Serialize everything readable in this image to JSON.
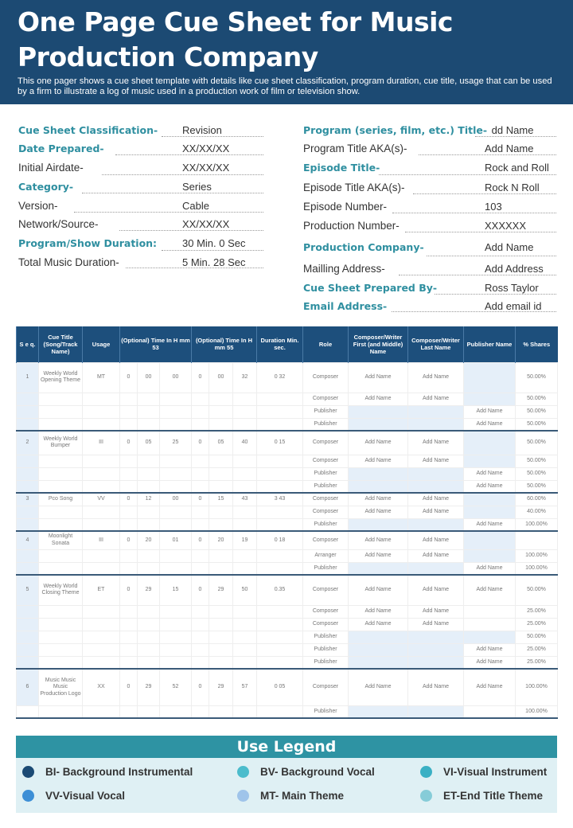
{
  "header": {
    "title": "One Page Cue Sheet for Music Production Company",
    "subtitle": "This one pager shows a cue sheet template with details like cue sheet classification, program duration, cue title, usage that can be used by a firm to illustrate a log of music used in a production work of film or television show."
  },
  "form_left": [
    {
      "label": "Cue Sheet Classification-",
      "value": "Revision",
      "highlight": true
    },
    {
      "label": "Date Prepared-",
      "value": "XX/XX/XX",
      "highlight": true
    },
    {
      "label": "Initial Airdate-",
      "value": "XX/XX/XX",
      "highlight": false
    },
    {
      "label": "Category-",
      "value": "Series",
      "highlight": true
    },
    {
      "label": "Version-",
      "value": "Cable",
      "highlight": false
    },
    {
      "label": "Network/Source-",
      "value": "XX/XX/XX",
      "highlight": false
    },
    {
      "label": "Program/Show Duration:",
      "value": "30 Min.   0 Sec",
      "highlight": true
    },
    {
      "label": "Total Music Duration-",
      "value": "5 Min.   28 Sec",
      "highlight": false
    }
  ],
  "form_right": [
    {
      "label": "Program (series, film, etc.) Title-",
      "value": "Add Name",
      "highlight": true
    },
    {
      "label": "Program Title AKA(s)-",
      "value": "Add Name",
      "highlight": false
    },
    {
      "label": "Episode Title-",
      "value": "Rock and Roll",
      "highlight": true
    },
    {
      "label": "Episode Title AKA(s)-",
      "value": "Rock N Roll",
      "highlight": false
    },
    {
      "label": "Episode Number-",
      "value": "103",
      "highlight": false
    },
    {
      "label": "Production Number-",
      "value": "XXXXXX",
      "highlight": false
    },
    {
      "label": "Production Company-",
      "value": "Add Name",
      "highlight": true
    },
    {
      "label": "Mailling Address-",
      "value": "Add Address",
      "highlight": false
    },
    {
      "label": "Cue Sheet Prepared By-",
      "value": "Ross Taylor",
      "highlight": true
    },
    {
      "label": "Email Address-",
      "value": "Add email id",
      "highlight": true
    }
  ],
  "table": {
    "headers": [
      "S e q.",
      "Cue Title (Song/Track Name)",
      "Usage",
      "(Optional) Time In H mm 53",
      "(Optional) Time In H mm 55",
      "Duration Min. sec.",
      "Role",
      "Composer/Writer First (and Middle) Name",
      "Composer/Writer Last Name",
      "Publisher Name",
      "% Shares"
    ],
    "cues": [
      {
        "seq": "1",
        "title": "Weekly World Opening Theme",
        "usage": "MT",
        "t1": [
          "0",
          "00",
          "00"
        ],
        "t2": [
          "0",
          "00",
          "32"
        ],
        "duration": "0 32",
        "rows": [
          {
            "role": "Composer",
            "first": "Add Name",
            "last": "Add Name",
            "publisher": "",
            "share": "50.00%"
          },
          {
            "role": "Composer",
            "first": "Add Name",
            "last": "Add Name",
            "publisher": "",
            "share": "50.00%"
          },
          {
            "role": "Publisher",
            "first": "",
            "last": "",
            "publisher": "Add Name",
            "share": "50.00%"
          },
          {
            "role": "Publisher",
            "first": "",
            "last": "",
            "publisher": "Add Name",
            "share": "50.00%"
          }
        ]
      },
      {
        "seq": "2",
        "title": "Weekly World Bumper",
        "usage": "III",
        "t1": [
          "0",
          "05",
          "25"
        ],
        "t2": [
          "0",
          "05",
          "40"
        ],
        "duration": "0 15",
        "rows": [
          {
            "role": "Composer",
            "first": "Add Name",
            "last": "Add Name",
            "publisher": "",
            "share": "50.00%"
          },
          {
            "role": "Composer",
            "first": "Add Name",
            "last": "Add Name",
            "publisher": "",
            "share": "50.00%"
          },
          {
            "role": "Publisher",
            "first": "",
            "last": "",
            "publisher": "Add Name",
            "share": "50.00%"
          },
          {
            "role": "Publisher",
            "first": "",
            "last": "",
            "publisher": "Add Name",
            "share": "50.00%"
          }
        ]
      },
      {
        "seq": "3",
        "title": "Pco Song",
        "usage": "VV",
        "t1": [
          "0",
          "12",
          "00"
        ],
        "t2": [
          "0",
          "15",
          "43"
        ],
        "duration": "3 43",
        "rows": [
          {
            "role": "Composer",
            "first": "Add Name",
            "last": "Add Name",
            "publisher": "",
            "share": "60.00%"
          },
          {
            "role": "Composer",
            "first": "Add Name",
            "last": "Add Name",
            "publisher": "",
            "share": "40.00%"
          },
          {
            "role": "Publisher",
            "first": "",
            "last": "",
            "publisher": "Add Name",
            "share": "100.00%"
          }
        ]
      },
      {
        "seq": "4",
        "title": "Moonlight Sonata",
        "usage": "III",
        "t1": [
          "0",
          "20",
          "01"
        ],
        "t2": [
          "0",
          "20",
          "19"
        ],
        "duration": "0 18",
        "rows": [
          {
            "role": "Composer",
            "first": "Add Name",
            "last": "Add Name",
            "publisher": "",
            "share": ""
          },
          {
            "role": "Arranger",
            "first": "Add Name",
            "last": "Add Name",
            "publisher": "",
            "share": "100.00%"
          },
          {
            "role": "Publisher",
            "first": "",
            "last": "",
            "publisher": "Add Name",
            "share": "100.00%"
          }
        ]
      },
      {
        "seq": "5",
        "title": "Weekly World Closing Theme",
        "usage": "ET",
        "t1": [
          "0",
          "29",
          "15"
        ],
        "t2": [
          "0",
          "29",
          "50"
        ],
        "duration": "0.35",
        "rows": [
          {
            "role": "Composer",
            "first": "Add Name",
            "last": "Add Name",
            "publisher": "Add Name",
            "share": "50.00%"
          },
          {
            "role": "Composer",
            "first": "Add Name",
            "last": "Add Name",
            "publisher": "",
            "share": "25.00%"
          },
          {
            "role": "Composer",
            "first": "Add Name",
            "last": "Add Name",
            "publisher": "",
            "share": "25.00%"
          },
          {
            "role": "Publisher",
            "first": "",
            "last": "",
            "publisher": "",
            "share": "50.00%"
          },
          {
            "role": "Publisher",
            "first": "",
            "last": "",
            "publisher": "Add Name",
            "share": "25.00%"
          },
          {
            "role": "Publisher",
            "first": "",
            "last": "",
            "publisher": "Add Name",
            "share": "25.00%"
          }
        ]
      },
      {
        "seq": "6",
        "title": "Music Music Music Production Logo",
        "usage": "XX",
        "t1": [
          "0",
          "29",
          "52"
        ],
        "t2": [
          "0",
          "29",
          "57"
        ],
        "duration": "0 05",
        "rows": [
          {
            "role": "Composer",
            "first": "Add Name",
            "last": "Add Name",
            "publisher": "Add Name",
            "share": "100.00%"
          },
          {
            "role": "Publisher",
            "first": "",
            "last": "",
            "publisher": "",
            "share": "100.00%"
          }
        ]
      }
    ]
  },
  "legend": {
    "title": "Use Legend",
    "items": [
      {
        "label": "BI- Background Instrumental",
        "color": "#1b4a74"
      },
      {
        "label": "BV- Background Vocal",
        "color": "#4bbccc"
      },
      {
        "label": "VI-Visual Instrument",
        "color": "#3ab0c4"
      },
      {
        "label": "VV-Visual Vocal",
        "color": "#3d8fd6"
      },
      {
        "label": "MT- Main Theme",
        "color": "#9fc4ea"
      },
      {
        "label": "ET-End Title Theme",
        "color": "#86ccd8"
      }
    ]
  }
}
